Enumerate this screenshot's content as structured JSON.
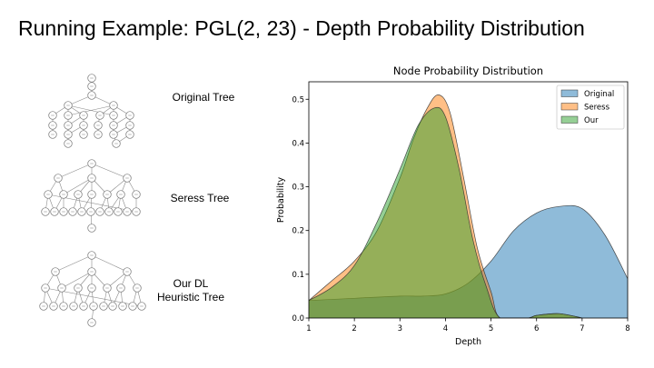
{
  "slide": {
    "title": "Running Example: PGL(2, 23) - Depth Probability Distribution"
  },
  "trees": [
    {
      "label": "Original Tree"
    },
    {
      "label": "Seress Tree"
    },
    {
      "label": "Our DL Heuristic Tree"
    }
  ],
  "chart_data": {
    "type": "area",
    "title": "Node Probability Distribution",
    "xlabel": "Depth",
    "ylabel": "Probability",
    "xlim": [
      1,
      8
    ],
    "ylim": [
      0,
      0.54
    ],
    "xticks": [
      1,
      2,
      3,
      4,
      5,
      6,
      7,
      8
    ],
    "yticks": [
      0.0,
      0.1,
      0.2,
      0.3,
      0.4,
      0.5
    ],
    "legend_position": "top-right",
    "grid": false,
    "series": [
      {
        "name": "Original",
        "color": "#1f77b4",
        "x": [
          1.0,
          2.0,
          3.0,
          3.5,
          4.0,
          4.5,
          5.0,
          5.5,
          6.0,
          6.5,
          7.0,
          7.5,
          8.0
        ],
        "y": [
          0.04,
          0.045,
          0.05,
          0.05,
          0.055,
          0.08,
          0.13,
          0.2,
          0.24,
          0.255,
          0.25,
          0.19,
          0.09
        ]
      },
      {
        "name": "Seress",
        "color": "#ff7f0e",
        "x": [
          1.0,
          1.5,
          2.0,
          2.5,
          3.0,
          3.3,
          3.6,
          3.85,
          4.1,
          4.4,
          4.7,
          5.0,
          5.2,
          5.8,
          6.0,
          6.5,
          7.0
        ],
        "y": [
          0.04,
          0.085,
          0.13,
          0.2,
          0.32,
          0.41,
          0.48,
          0.51,
          0.47,
          0.32,
          0.16,
          0.06,
          0.0,
          0.0,
          0.006,
          0.01,
          0.0
        ]
      },
      {
        "name": "Our",
        "color": "#2ca02c",
        "x": [
          1.0,
          1.5,
          2.0,
          2.5,
          3.0,
          3.4,
          3.75,
          4.0,
          4.3,
          4.6,
          4.9,
          5.2,
          5.8,
          6.0,
          6.5,
          7.0
        ],
        "y": [
          0.04,
          0.07,
          0.12,
          0.22,
          0.34,
          0.44,
          0.48,
          0.46,
          0.34,
          0.18,
          0.07,
          0.0,
          0.0,
          0.006,
          0.01,
          0.0
        ]
      }
    ]
  }
}
